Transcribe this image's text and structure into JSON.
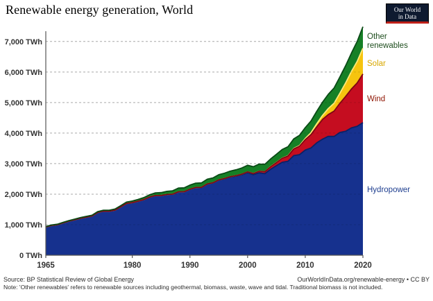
{
  "title": "Renewable energy generation, World",
  "logo": {
    "line1": "Our World",
    "line2": "in Data"
  },
  "footer": {
    "source": "Source: BP Statistical Review of Global Energy",
    "attribution": "OurWorldInData.org/renewable-energy • CC BY",
    "note": "Note: 'Other renewables' refers to renewable sources including geothermal, biomass, waste, wave and tidal. Traditional biomass is not included."
  },
  "chart_data": {
    "type": "area",
    "stacked": true,
    "title": "Renewable energy generation, World",
    "xlabel": "",
    "ylabel": "TWh",
    "grid": "dashed-horizontal",
    "legend_position": "right",
    "xlim": [
      1965,
      2020
    ],
    "ylim": [
      0,
      7450
    ],
    "years": [
      1965,
      1966,
      1967,
      1968,
      1969,
      1970,
      1971,
      1972,
      1973,
      1974,
      1975,
      1976,
      1977,
      1978,
      1979,
      1980,
      1981,
      1982,
      1983,
      1984,
      1985,
      1986,
      1987,
      1988,
      1989,
      1990,
      1991,
      1992,
      1993,
      1994,
      1995,
      1996,
      1997,
      1998,
      1999,
      2000,
      2001,
      2002,
      2003,
      2004,
      2005,
      2006,
      2007,
      2008,
      2009,
      2010,
      2011,
      2012,
      2013,
      2014,
      2015,
      2016,
      2017,
      2018,
      2019,
      2020
    ],
    "yticks": [
      {
        "value": 0,
        "label": "0 TWh"
      },
      {
        "value": 1000,
        "label": "1,000 TWh"
      },
      {
        "value": 2000,
        "label": "2,000 TWh"
      },
      {
        "value": 3000,
        "label": "3,000 TWh"
      },
      {
        "value": 4000,
        "label": "4,000 TWh"
      },
      {
        "value": 5000,
        "label": "5,000 TWh"
      },
      {
        "value": 6000,
        "label": "6,000 TWh"
      },
      {
        "value": 7000,
        "label": "7,000 TWh"
      }
    ],
    "xticks": [
      {
        "value": 1965,
        "label": "1965"
      },
      {
        "value": 1980,
        "label": "1980"
      },
      {
        "value": 1990,
        "label": "1990"
      },
      {
        "value": 2000,
        "label": "2000"
      },
      {
        "value": 2010,
        "label": "2010"
      },
      {
        "value": 2020,
        "label": "2020"
      }
    ],
    "series": [
      {
        "name": "Hydropower",
        "fill": "#16318e",
        "edge": "#0c2166",
        "label_color": "#1e3e8f",
        "values": [
          926,
          975,
          999,
          1058,
          1115,
          1160,
          1209,
          1248,
          1283,
          1402,
          1444,
          1442,
          1477,
          1586,
          1695,
          1723,
          1769,
          1823,
          1905,
          1956,
          1954,
          1988,
          1998,
          2077,
          2078,
          2159,
          2216,
          2219,
          2332,
          2366,
          2462,
          2504,
          2561,
          2590,
          2634,
          2699,
          2638,
          2699,
          2672,
          2816,
          2933,
          3043,
          3078,
          3262,
          3294,
          3444,
          3514,
          3682,
          3801,
          3894,
          3891,
          4020,
          4060,
          4171,
          4222,
          4346
        ]
      },
      {
        "name": "Wind",
        "fill": "#c50d20",
        "edge": "#7e0612",
        "label_color": "#8e1300",
        "values": [
          0,
          0,
          0,
          0,
          0,
          0,
          0,
          0,
          0,
          0,
          0,
          0,
          0,
          0,
          0,
          0,
          0,
          0,
          0,
          0,
          1,
          1,
          1,
          2,
          3,
          4,
          4,
          5,
          6,
          7,
          8,
          9,
          12,
          16,
          21,
          31,
          38,
          52,
          63,
          85,
          104,
          133,
          171,
          221,
          276,
          342,
          437,
          524,
          646,
          712,
          831,
          957,
          1138,
          1270,
          1421,
          1591
        ]
      },
      {
        "name": "Solar",
        "fill": "#f6c40e",
        "edge": "#ffe97a",
        "label_color": "#d8a800",
        "values": [
          0,
          0,
          0,
          0,
          0,
          0,
          0,
          0,
          0,
          0,
          0,
          0,
          0,
          0,
          0,
          0,
          0,
          0,
          0,
          0,
          0,
          0,
          0,
          0,
          0,
          0,
          0,
          0,
          0,
          0,
          0,
          0,
          0,
          0,
          0,
          1,
          1,
          2,
          2,
          3,
          4,
          5,
          7,
          12,
          20,
          34,
          64,
          100,
          132,
          198,
          256,
          328,
          445,
          574,
          703,
          844
        ]
      },
      {
        "name": "Other renewables",
        "fill": "#168026",
        "edge": "#0a4a16",
        "label_color": "#1e4e1e",
        "values": [
          15,
          16,
          17,
          18,
          19,
          21,
          22,
          23,
          25,
          27,
          30,
          32,
          35,
          38,
          45,
          52,
          58,
          65,
          75,
          86,
          97,
          104,
          112,
          120,
          127,
          133,
          140,
          146,
          152,
          160,
          168,
          175,
          183,
          192,
          203,
          215,
          222,
          232,
          240,
          252,
          266,
          280,
          297,
          313,
          334,
          356,
          382,
          406,
          432,
          466,
          500,
          531,
          564,
          602,
          652,
          700
        ]
      }
    ]
  }
}
